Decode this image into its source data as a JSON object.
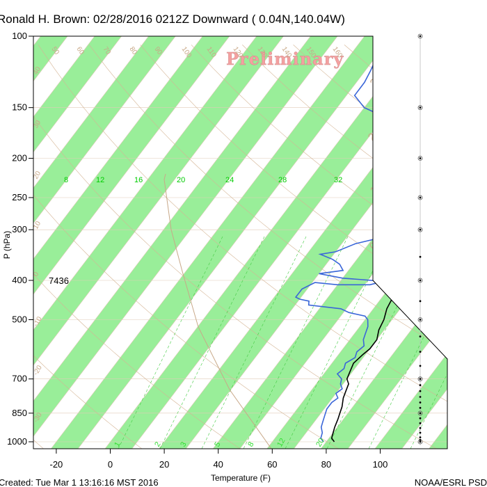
{
  "chart_data": {
    "type": "line",
    "title": "Ronald H. Brown: 02/28/2016 0212Z Downward ( 0.04N,140.04W)",
    "watermark": "Preliminary",
    "xlabel": "Temperature (F)",
    "ylabel": "P (hPa)",
    "xlim": [
      -28,
      112
    ],
    "ylim": [
      1050,
      100
    ],
    "y_scale": "log",
    "x_ticks": [
      "-20",
      "0",
      "20",
      "40",
      "60",
      "80",
      "100"
    ],
    "y_ticks": [
      "100",
      "150",
      "200",
      "250",
      "300",
      "400",
      "500",
      "700",
      "850",
      "1000"
    ],
    "height_label": "7436",
    "mixing_ratio_labels": [
      "8",
      "12",
      "16",
      "20",
      "24",
      "28",
      "32"
    ],
    "mixing_ratio_bottom_labels": [
      "1",
      "2",
      "3",
      "5",
      "8",
      "12",
      "20"
    ],
    "isotherm_labels": [
      "50",
      "60",
      "70",
      "80",
      "90",
      "100",
      "110",
      "120",
      "130",
      "140",
      "150",
      "160"
    ],
    "left_angle_labels": [
      "40",
      "30",
      "20",
      "10",
      "0",
      "-10",
      "-20",
      "-30"
    ],
    "right_angle_labels": [
      "30",
      "20",
      "10",
      "0",
      "-10",
      "-20",
      "-30"
    ],
    "colors": {
      "temperature": "#000000",
      "dewpoint": "#3a66d8",
      "band": "#99ee99",
      "isotherm": "#e0cbb7",
      "mixing": "#44cc44"
    },
    "series": [
      {
        "name": "Temperature",
        "points": [
          [
            83,
            1000
          ],
          [
            81,
            980
          ],
          [
            80,
            950
          ],
          [
            79,
            920
          ],
          [
            78,
            880
          ],
          [
            77,
            850
          ],
          [
            76,
            820
          ],
          [
            74,
            780
          ],
          [
            73,
            750
          ],
          [
            72,
            720
          ],
          [
            70,
            700
          ],
          [
            69,
            670
          ],
          [
            68,
            640
          ],
          [
            69,
            610
          ],
          [
            70,
            590
          ],
          [
            70,
            560
          ],
          [
            68,
            530
          ],
          [
            67,
            500
          ],
          [
            65,
            470
          ],
          [
            64,
            440
          ],
          [
            63,
            420
          ],
          [
            62,
            400
          ],
          [
            60,
            380
          ],
          [
            57,
            350
          ],
          [
            53,
            320
          ],
          [
            50,
            300
          ],
          [
            46,
            275
          ],
          [
            42,
            250
          ],
          [
            37,
            225
          ],
          [
            33,
            200
          ],
          [
            29,
            180
          ],
          [
            27,
            165
          ],
          [
            26,
            150
          ],
          [
            26,
            140
          ],
          [
            26,
            130
          ],
          [
            24,
            120
          ],
          [
            22,
            110
          ],
          [
            19,
            100
          ]
        ]
      },
      {
        "name": "Dewpoint",
        "points": [
          [
            79,
            1000
          ],
          [
            77,
            980
          ],
          [
            76,
            950
          ],
          [
            74,
            920
          ],
          [
            73,
            890
          ],
          [
            72,
            860
          ],
          [
            71,
            830
          ],
          [
            71,
            800
          ],
          [
            72,
            780
          ],
          [
            70,
            760
          ],
          [
            71,
            740
          ],
          [
            69,
            720
          ],
          [
            68,
            700
          ],
          [
            65,
            680
          ],
          [
            66,
            660
          ],
          [
            65,
            640
          ],
          [
            67,
            620
          ],
          [
            66,
            600
          ],
          [
            67,
            580
          ],
          [
            65,
            560
          ],
          [
            64,
            540
          ],
          [
            63,
            520
          ],
          [
            61,
            500
          ],
          [
            59,
            490
          ],
          [
            52,
            480
          ],
          [
            48,
            470
          ],
          [
            35,
            460
          ],
          [
            34,
            450
          ],
          [
            30,
            445
          ],
          [
            28,
            440
          ],
          [
            28,
            420
          ],
          [
            31,
            405
          ],
          [
            40,
            410
          ],
          [
            52,
            410
          ],
          [
            56,
            402
          ],
          [
            40,
            395
          ],
          [
            30,
            385
          ],
          [
            38,
            378
          ],
          [
            35,
            365
          ],
          [
            31,
            355
          ],
          [
            25,
            345
          ],
          [
            30,
            340
          ],
          [
            35,
            325
          ],
          [
            42,
            315
          ],
          [
            43,
            300
          ],
          [
            43,
            280
          ],
          [
            42,
            260
          ],
          [
            40,
            250
          ],
          [
            37,
            235
          ],
          [
            35,
            215
          ],
          [
            33,
            200
          ],
          [
            29,
            185
          ],
          [
            20,
            170
          ],
          [
            10,
            158
          ],
          [
            0,
            150
          ],
          [
            -7,
            140
          ],
          [
            -7,
            130
          ],
          [
            -8,
            122
          ],
          [
            -10,
            110
          ],
          [
            -16,
            100
          ]
        ]
      }
    ],
    "wind_levels": [
      "1000",
      "990",
      "975",
      "950",
      "925",
      "900",
      "875",
      "850",
      "825",
      "800",
      "775",
      "750",
      "725",
      "700",
      "650",
      "600",
      "550",
      "500",
      "450",
      "400",
      "350",
      "300",
      "250",
      "200",
      "150",
      "100"
    ]
  },
  "footer": {
    "created": "Created: Tue Mar  1 13:16:16 MST 2016",
    "agency": "NOAA/ESRL PSD"
  }
}
